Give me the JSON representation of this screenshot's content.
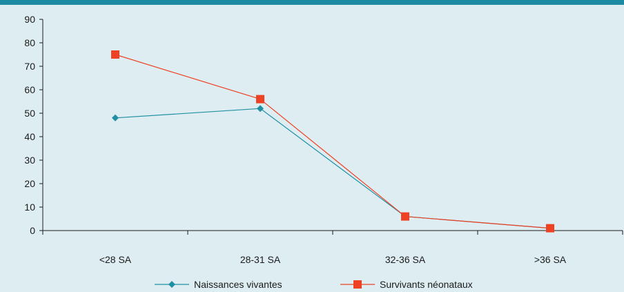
{
  "chart_data": {
    "type": "line",
    "categories": [
      "<28 SA",
      "28-31 SA",
      "32-36 SA",
      ">36 SA"
    ],
    "series": [
      {
        "name": "Naissances vivantes",
        "values": [
          48,
          52,
          6,
          1
        ],
        "color": "#1f8fa3",
        "marker": "diamond"
      },
      {
        "name": "Survivants néonataux",
        "values": [
          75,
          56,
          6,
          1
        ],
        "color": "#ef4123",
        "marker": "square"
      }
    ],
    "title": "",
    "xlabel": "",
    "ylabel": "",
    "ylim": [
      0,
      90
    ],
    "yticks": [
      "0",
      "10",
      "20",
      "30",
      "40",
      "50",
      "60",
      "70",
      "80",
      "90"
    ],
    "grid": false,
    "legend_position": "bottom"
  }
}
